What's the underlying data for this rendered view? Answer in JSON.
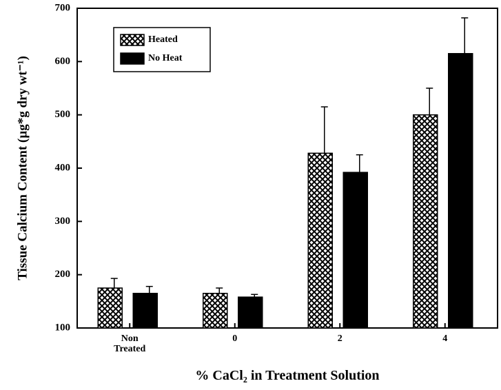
{
  "chart_data": {
    "type": "bar",
    "xlabel": "% CaCl₂ in Treatment Solution",
    "ylabel": "Tissue Calcium Content (µg*g dry wt⁻¹)",
    "categories": [
      "Non Treated",
      "0",
      "2",
      "4"
    ],
    "series": [
      {
        "name": "Heated",
        "color": "#000000",
        "pattern": "crosshatch",
        "values": [
          175,
          165,
          428,
          500
        ],
        "errors": [
          18,
          10,
          87,
          50
        ]
      },
      {
        "name": "No Heat",
        "color": "#000000",
        "values": [
          165,
          158,
          392,
          615
        ],
        "errors": [
          13,
          5,
          33,
          67
        ]
      }
    ],
    "ylim": [
      100,
      700
    ],
    "yticks": [
      100,
      200,
      300,
      400,
      500,
      600,
      700
    ],
    "grid": false,
    "legend": "upper left"
  }
}
